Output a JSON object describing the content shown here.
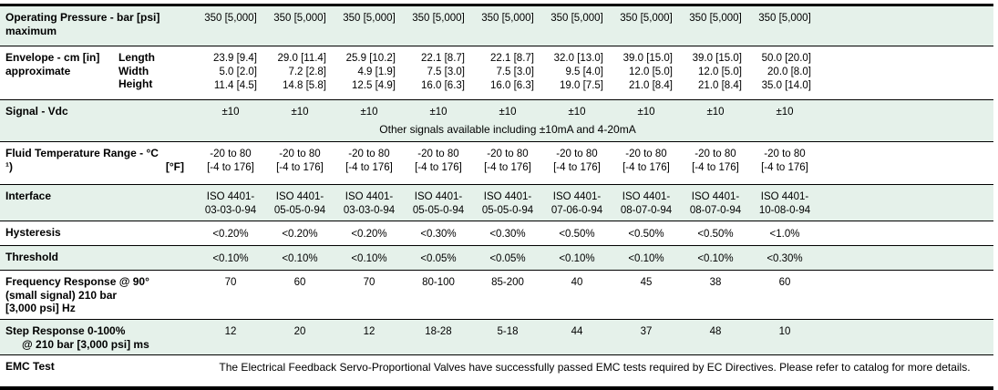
{
  "table": {
    "colors": {
      "shaded_row": "#e5f1ea",
      "line": "#000000",
      "text": "#000000"
    },
    "rows": [
      {
        "id": "operating-pressure",
        "label_lines": [
          "Operating Pressure - bar [psi]",
          "maximum"
        ],
        "values": [
          "350 [5,000]",
          "350 [5,000]",
          "350 [5,000]",
          "350 [5,000]",
          "350 [5,000]",
          "350 [5,000]",
          "350 [5,000]",
          "350 [5,000]",
          "350 [5,000]"
        ]
      },
      {
        "id": "envelope",
        "label_lines": [
          "Envelope - cm [in]",
          "approximate"
        ],
        "sub_labels": [
          "Length",
          "Width",
          "Height"
        ],
        "values": [
          [
            "23.9 [9.4]",
            "5.0 [2.0]",
            "11.4 [4.5]"
          ],
          [
            "29.0 [11.4]",
            "7.2 [2.8]",
            "14.8 [5.8]"
          ],
          [
            "25.9 [10.2]",
            "4.9 [1.9]",
            "12.5 [4.9]"
          ],
          [
            "22.1 [8.7]",
            "7.5 [3.0]",
            "16.0 [6.3]"
          ],
          [
            "22.1 [8.7]",
            "7.5 [3.0]",
            "16.0 [6.3]"
          ],
          [
            "32.0 [13.0]",
            "9.5 [4.0]",
            "19.0 [7.5]"
          ],
          [
            "39.0 [15.0]",
            "12.0 [5.0]",
            "21.0 [8.4]"
          ],
          [
            "39.0 [15.0]",
            "12.0 [5.0]",
            "21.0 [8.4]"
          ],
          [
            "50.0 [20.0]",
            "20.0 [8.0]",
            "35.0 [14.0]"
          ]
        ]
      },
      {
        "id": "signal",
        "label_lines": [
          "Signal - Vdc"
        ],
        "values": [
          "±10",
          "±10",
          "±10",
          "±10",
          "±10",
          "±10",
          "±10",
          "±10",
          "±10"
        ],
        "note": "Other signals available including ±10mA and 4-20mA"
      },
      {
        "id": "fluid-temperature",
        "label_lines": [
          "Fluid Temperature Range - °C"
        ],
        "label_footnote": "¹)",
        "label_unit2": "[°F]",
        "values": [
          [
            "-20 to 80",
            "[-4 to 176]"
          ],
          [
            "-20 to 80",
            "[-4 to 176]"
          ],
          [
            "-20 to 80",
            "[-4 to 176]"
          ],
          [
            "-20 to 80",
            "[-4 to 176]"
          ],
          [
            "-20 to 80",
            "[-4 to 176]"
          ],
          [
            "-20 to 80",
            "[-4 to 176]"
          ],
          [
            "-20 to 80",
            "[-4 to 176]"
          ],
          [
            "-20 to 80",
            "[-4 to 176]"
          ],
          [
            "-20 to 80",
            "[-4 to 176]"
          ]
        ]
      },
      {
        "id": "interface",
        "label_lines": [
          "Interface"
        ],
        "values": [
          [
            "ISO 4401-",
            "03-03-0-94"
          ],
          [
            "ISO 4401-",
            "05-05-0-94"
          ],
          [
            "ISO 4401-",
            "03-03-0-94"
          ],
          [
            "ISO 4401-",
            "05-05-0-94"
          ],
          [
            "ISO 4401-",
            "05-05-0-94"
          ],
          [
            "ISO 4401-",
            "07-06-0-94"
          ],
          [
            "ISO 4401-",
            "08-07-0-94"
          ],
          [
            "ISO 4401-",
            "08-07-0-94"
          ],
          [
            "ISO 4401-",
            "10-08-0-94"
          ]
        ]
      },
      {
        "id": "hysteresis",
        "label_lines": [
          "Hysteresis"
        ],
        "values": [
          "<0.20%",
          "<0.20%",
          "<0.20%",
          "<0.30%",
          "<0.30%",
          "<0.50%",
          "<0.50%",
          "<0.50%",
          "<1.0%"
        ]
      },
      {
        "id": "threshold",
        "label_lines": [
          "Threshold"
        ],
        "values": [
          "<0.10%",
          "<0.10%",
          "<0.10%",
          "<0.05%",
          "<0.05%",
          "<0.10%",
          "<0.10%",
          "<0.10%",
          "<0.30%"
        ]
      },
      {
        "id": "frequency-response",
        "label_lines": [
          "Frequency Response @ 90°",
          "(small signal) 210 bar",
          "[3,000 psi] Hz"
        ],
        "values": [
          "70",
          "60",
          "70",
          "80-100",
          "85-200",
          "40",
          "45",
          "38",
          "60"
        ]
      },
      {
        "id": "step-response",
        "label_lines": [
          "Step Response 0-100%",
          "@ 210 bar [3,000 psi] ms"
        ],
        "values": [
          "12",
          "20",
          "12",
          "18-28",
          "5-18",
          "44",
          "37",
          "48",
          "10"
        ]
      },
      {
        "id": "emc-test",
        "label_lines": [
          "EMC Test"
        ],
        "merged_text": "The Electrical Feedback Servo-Proportional Valves have successfully passed EMC tests required by EC Directives. Please refer to catalog for more details."
      }
    ]
  }
}
